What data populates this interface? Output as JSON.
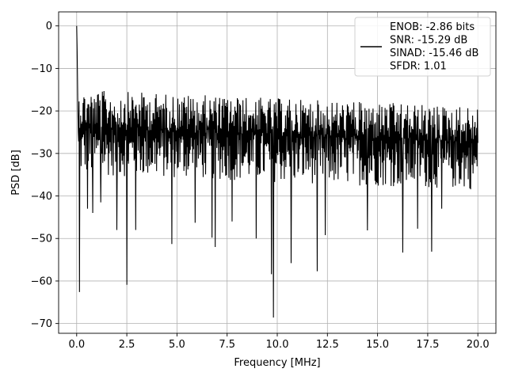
{
  "chart_data": {
    "type": "line",
    "title": "",
    "xlabel": "Frequency [MHz]",
    "ylabel": "PSD [dB]",
    "xlim": [
      -0.9,
      20.9
    ],
    "ylim": [
      -72.3,
      3.3
    ],
    "x_ticks": [
      0.0,
      2.5,
      5.0,
      7.5,
      10.0,
      12.5,
      15.0,
      17.5,
      20.0
    ],
    "x_tick_labels": [
      "0.0",
      "2.5",
      "5.0",
      "7.5",
      "10.0",
      "12.5",
      "15.0",
      "17.5",
      "20.0"
    ],
    "y_ticks": [
      0,
      -10,
      -20,
      -30,
      -40,
      -50,
      -60,
      -70
    ],
    "y_tick_labels": [
      "0",
      "−10",
      "−20",
      "−30",
      "−40",
      "−50",
      "−60",
      "−70"
    ],
    "grid": true,
    "legend_position": "top-right",
    "line_color": "#000000",
    "series": [
      {
        "legend_lines": [
          "ENOB: -2.86 bits",
          "SNR: -15.29 dB",
          "SINAD: -15.46 dB",
          "SFDR: 1.01"
        ],
        "x_range": [
          0.0,
          20.0
        ],
        "n_points": 1000,
        "start_value": 0.0,
        "early_values": [
          -5,
          -12,
          -20,
          -25
        ],
        "typical_max": [
          -15,
          -19
        ],
        "typical_min": [
          -35,
          -41
        ],
        "dips": [
          {
            "x": 0.15,
            "y": -62.6
          },
          {
            "x": 0.55,
            "y": -43.0
          },
          {
            "x": 0.8,
            "y": -44.0
          },
          {
            "x": 1.2,
            "y": -41.5
          },
          {
            "x": 2.0,
            "y": -48.0
          },
          {
            "x": 2.5,
            "y": -60.9
          },
          {
            "x": 2.95,
            "y": -48.0
          },
          {
            "x": 4.75,
            "y": -51.3
          },
          {
            "x": 5.9,
            "y": -46.3
          },
          {
            "x": 6.75,
            "y": -49.8
          },
          {
            "x": 6.9,
            "y": -52.0
          },
          {
            "x": 7.75,
            "y": -46.0
          },
          {
            "x": 8.95,
            "y": -50.0
          },
          {
            "x": 9.7,
            "y": -58.4
          },
          {
            "x": 9.8,
            "y": -68.6
          },
          {
            "x": 10.7,
            "y": -55.8
          },
          {
            "x": 12.0,
            "y": -57.7
          },
          {
            "x": 12.4,
            "y": -49.2
          },
          {
            "x": 14.5,
            "y": -48.1
          },
          {
            "x": 16.25,
            "y": -53.3
          },
          {
            "x": 17.0,
            "y": -47.7
          },
          {
            "x": 17.7,
            "y": -53.1
          },
          {
            "x": 18.2,
            "y": -43.0
          }
        ]
      }
    ]
  }
}
